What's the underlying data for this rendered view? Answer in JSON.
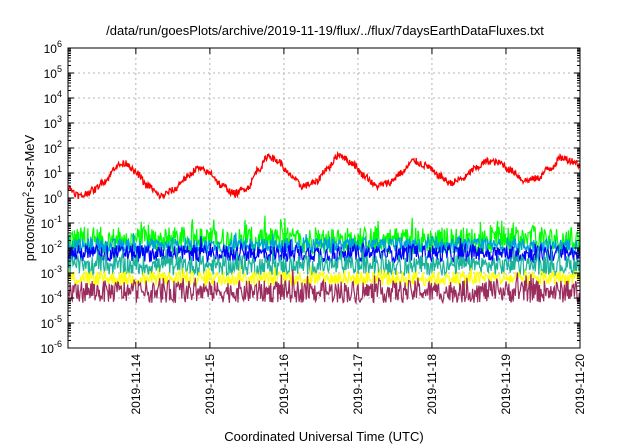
{
  "chart_data": {
    "type": "line",
    "title": "/data/run/goesPlots/archive/2019-11-19/flux/../flux/7daysEarthDataFluxes.txt",
    "xlabel": "Coordinated Universal Time (UTC)",
    "ylabel": "protons/cm²-s-sr-MeV",
    "ylabel_parts": {
      "main": "protons/cm",
      "sup": "2",
      "rest": "-s-sr-MeV"
    },
    "yscale": "log",
    "ylim": [
      "1e-6",
      "1e6"
    ],
    "y_ticks": [
      {
        "value": "1e-6",
        "base": "10",
        "exp": "-6"
      },
      {
        "value": "1e-5",
        "base": "10",
        "exp": "-5"
      },
      {
        "value": "1e-4",
        "base": "10",
        "exp": "-4"
      },
      {
        "value": "1e-3",
        "base": "10",
        "exp": "-3"
      },
      {
        "value": "1e-2",
        "base": "10",
        "exp": "-2"
      },
      {
        "value": "1e-1",
        "base": "10",
        "exp": "-1"
      },
      {
        "value": "1e0",
        "base": "10",
        "exp": "0"
      },
      {
        "value": "1e1",
        "base": "10",
        "exp": "1"
      },
      {
        "value": "1e2",
        "base": "10",
        "exp": "2"
      },
      {
        "value": "1e3",
        "base": "10",
        "exp": "3"
      },
      {
        "value": "1e4",
        "base": "10",
        "exp": "4"
      },
      {
        "value": "1e5",
        "base": "10",
        "exp": "5"
      },
      {
        "value": "1e6",
        "base": "10",
        "exp": "6"
      }
    ],
    "xlim": [
      "2019-11-13 02:00",
      "2019-11-20 00:00"
    ],
    "x_ticks": [
      "2019-11-14",
      "2019-11-15",
      "2019-11-16",
      "2019-11-17",
      "2019-11-18",
      "2019-11-19",
      "2019-11-20"
    ],
    "grid": true,
    "series": [
      {
        "color": "#ff0000",
        "points": [
          [
            "2019-11-13 02:00",
            2.5
          ],
          [
            "2019-11-13 06:00",
            1.2
          ],
          [
            "2019-11-13 10:00",
            2.0
          ],
          [
            "2019-11-13 14:00",
            5.0
          ],
          [
            "2019-11-13 18:00",
            20
          ],
          [
            "2019-11-13 21:00",
            25
          ],
          [
            "2019-11-14 00:00",
            10
          ],
          [
            "2019-11-14 04:00",
            3.0
          ],
          [
            "2019-11-14 08:00",
            1.2
          ],
          [
            "2019-11-14 12:00",
            2.0
          ],
          [
            "2019-11-14 16:00",
            6.0
          ],
          [
            "2019-11-14 20:00",
            15
          ],
          [
            "2019-11-15 00:00",
            10
          ],
          [
            "2019-11-15 04:00",
            3.0
          ],
          [
            "2019-11-15 08:00",
            1.5
          ],
          [
            "2019-11-15 12:00",
            2.5
          ],
          [
            "2019-11-15 16:00",
            15
          ],
          [
            "2019-11-15 19:00",
            50
          ],
          [
            "2019-11-15 22:00",
            30
          ],
          [
            "2019-11-16 02:00",
            8
          ],
          [
            "2019-11-16 06:00",
            3.0
          ],
          [
            "2019-11-16 10:00",
            4.0
          ],
          [
            "2019-11-16 14:00",
            15
          ],
          [
            "2019-11-16 18:00",
            55
          ],
          [
            "2019-11-16 22:00",
            25
          ],
          [
            "2019-11-17 02:00",
            8
          ],
          [
            "2019-11-17 06:00",
            3.0
          ],
          [
            "2019-11-17 10:00",
            4.0
          ],
          [
            "2019-11-17 14:00",
            10
          ],
          [
            "2019-11-17 18:00",
            30
          ],
          [
            "2019-11-17 22:00",
            20
          ],
          [
            "2019-11-18 02:00",
            8
          ],
          [
            "2019-11-18 06:00",
            4.0
          ],
          [
            "2019-11-18 10:00",
            6.0
          ],
          [
            "2019-11-18 14:00",
            15
          ],
          [
            "2019-11-18 18:00",
            30
          ],
          [
            "2019-11-18 22:00",
            25
          ],
          [
            "2019-11-19 02:00",
            12
          ],
          [
            "2019-11-19 06:00",
            5.0
          ],
          [
            "2019-11-19 10:00",
            6.0
          ],
          [
            "2019-11-19 14:00",
            15
          ],
          [
            "2019-11-19 18:00",
            40
          ],
          [
            "2019-11-19 22:00",
            30
          ],
          [
            "2019-11-20 00:00",
            20
          ]
        ]
      },
      {
        "color": "#00ff00",
        "level": 0.02,
        "spread": 0.55,
        "spike": 0.15
      },
      {
        "color": "#009fdf",
        "level": 0.012,
        "spread": 0.3,
        "spike": 0.1
      },
      {
        "color": "#0000ff",
        "level": 0.006,
        "spread": 0.35,
        "spike": 0.1
      },
      {
        "color": "#1ab39a",
        "level": 0.002,
        "spread": 0.4,
        "spike": 0.1
      },
      {
        "color": "#ffff00",
        "level": 0.0006,
        "spread": 0.3,
        "spike": 0.1
      },
      {
        "color": "#9b2d5e",
        "level": 0.00018,
        "spread": 0.45,
        "spike": 0.1
      }
    ]
  }
}
